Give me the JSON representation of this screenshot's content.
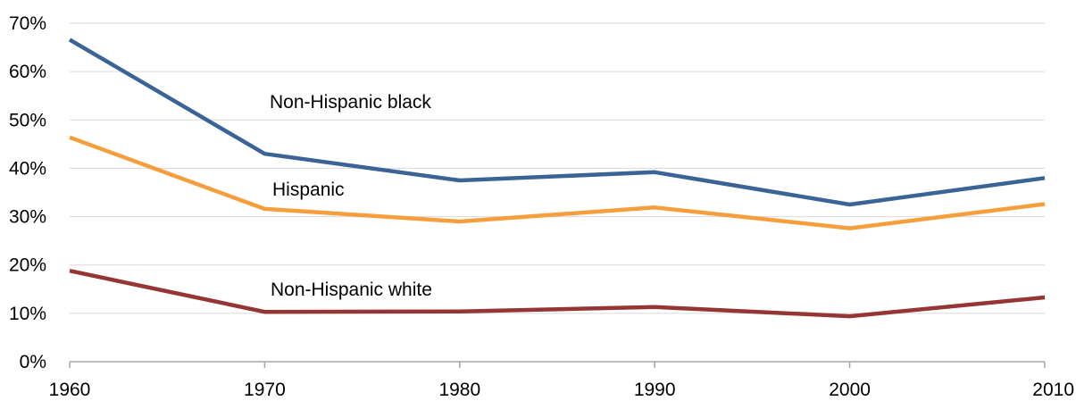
{
  "chart_data": {
    "type": "line",
    "title": "",
    "xlabel": "",
    "ylabel": "",
    "x": [
      1960,
      1970,
      1980,
      1990,
      2000,
      2010
    ],
    "x_tick_labels": [
      "1960",
      "1970",
      "1980",
      "1990",
      "2000",
      "2010"
    ],
    "ylim": [
      0,
      70
    ],
    "y_ticks": [
      0,
      10,
      20,
      30,
      40,
      50,
      60,
      70
    ],
    "y_tick_labels": [
      "0%",
      "10%",
      "20%",
      "30%",
      "40%",
      "50%",
      "60%",
      "70%"
    ],
    "grid": "horizontal",
    "legend": "inline labels",
    "series": [
      {
        "name": "Non-Hispanic black",
        "color": "#3B6496",
        "values": [
          66.6,
          43.0,
          37.5,
          39.2,
          32.5,
          38.0
        ]
      },
      {
        "name": "Hispanic",
        "color": "#F79E3C",
        "values": [
          46.4,
          31.6,
          29.0,
          31.9,
          27.6,
          32.6
        ]
      },
      {
        "name": "Non-Hispanic white",
        "color": "#963634",
        "values": [
          18.8,
          10.3,
          10.4,
          11.3,
          9.4,
          13.3
        ]
      }
    ]
  }
}
